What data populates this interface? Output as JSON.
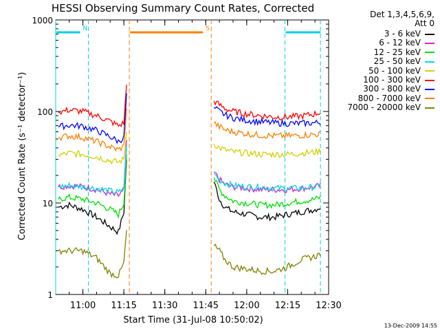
{
  "chart_data": {
    "type": "line",
    "title": "HESSI Observing Summary Count Rates, Corrected",
    "xlabel": "Start Time (31-Jul-08 10:50:02)",
    "ylabel": "Corrected Count Rate (s⁻¹ detector⁻¹)",
    "yscale": "log",
    "ylim": [
      1,
      1000
    ],
    "xlim": [
      "10:50:02",
      "12:30:00"
    ],
    "x_ticks": [
      "11:00",
      "11:15",
      "11:30",
      "11:45",
      "12:00",
      "12:15",
      "12:30"
    ],
    "y_ticks": [
      "1",
      "10",
      "100",
      "1000"
    ],
    "grid": false,
    "legend_position": "right",
    "legend_header": [
      "Det 1,3,4,5,6,9,",
      "Att 0"
    ],
    "footer_date": "13-Dec-2009 14:55",
    "flags": [
      {
        "label": "N",
        "color": "#00d0e0",
        "start": "10:50:02",
        "end": "11:02:00",
        "linestyle": "dashed"
      },
      {
        "label": "S",
        "color": "#ff7f00",
        "start": "11:17:00",
        "end": "11:47:00",
        "linestyle": "dashed"
      },
      {
        "label": "",
        "color": "#00d0e0",
        "start": "12:14:00",
        "end": "12:27:00",
        "linestyle": "dashed"
      }
    ],
    "data_gaps": [
      [
        "11:17:00",
        "11:48:00"
      ]
    ],
    "series": [
      {
        "name": "3 - 6 keV",
        "color": "#000000",
        "x": [
          "10:51",
          "10:55",
          "11:00",
          "11:05",
          "11:10",
          "11:13",
          "11:15",
          "11:16",
          "11:48",
          "11:50",
          "11:52",
          "11:55",
          "12:00",
          "12:05",
          "12:10",
          "12:15",
          "12:20",
          "12:25",
          "12:27"
        ],
        "values": [
          9,
          9.5,
          8.5,
          7,
          5.5,
          4.8,
          8,
          30,
          17,
          11,
          9,
          8,
          7.5,
          7,
          7,
          7.5,
          8,
          8.5,
          9
        ]
      },
      {
        "name": "6 - 12 keV",
        "color": "#d020d0",
        "x": [
          "10:51",
          "10:55",
          "11:00",
          "11:05",
          "11:10",
          "11:13",
          "11:15",
          "11:16",
          "11:48",
          "11:50",
          "11:52",
          "11:55",
          "12:00",
          "12:05",
          "12:10",
          "12:15",
          "12:20",
          "12:25",
          "12:27"
        ],
        "values": [
          15,
          15.5,
          15,
          14,
          12.5,
          12,
          14,
          45,
          22,
          18,
          16,
          15,
          14.5,
          14,
          14,
          14,
          14.5,
          15,
          15.5
        ]
      },
      {
        "name": "12 - 25 keV",
        "color": "#00e000",
        "x": [
          "10:51",
          "10:55",
          "11:00",
          "11:05",
          "11:10",
          "11:13",
          "11:15",
          "11:16",
          "11:48",
          "11:50",
          "11:52",
          "11:55",
          "12:00",
          "12:05",
          "12:10",
          "12:15",
          "12:20",
          "12:25",
          "12:27"
        ],
        "values": [
          11,
          11.5,
          11,
          10,
          8.5,
          7.5,
          10,
          35,
          19,
          14,
          12,
          10.5,
          10,
          9.5,
          9.5,
          10,
          10.5,
          11,
          11.5
        ]
      },
      {
        "name": "25 - 50 keV",
        "color": "#00d8e8",
        "x": [
          "10:51",
          "10:55",
          "11:00",
          "11:05",
          "11:10",
          "11:13",
          "11:15",
          "11:16",
          "11:48",
          "11:50",
          "11:52",
          "11:55",
          "12:00",
          "12:05",
          "12:10",
          "12:15",
          "12:20",
          "12:25",
          "12:27"
        ],
        "values": [
          15,
          15.5,
          15,
          14.5,
          13.5,
          13,
          14,
          40,
          21,
          18,
          16.5,
          15.5,
          15,
          15,
          14.5,
          14.5,
          14.5,
          15,
          15
        ]
      },
      {
        "name": "50 - 100 keV",
        "color": "#d0d000",
        "x": [
          "10:51",
          "10:55",
          "11:00",
          "11:05",
          "11:10",
          "11:13",
          "11:15",
          "11:16",
          "11:48",
          "11:50",
          "11:52",
          "11:55",
          "12:00",
          "12:05",
          "12:10",
          "12:15",
          "12:20",
          "12:25",
          "12:27"
        ],
        "values": [
          33,
          35,
          34,
          32,
          29,
          28,
          30,
          60,
          44,
          40,
          38,
          36,
          35,
          34,
          34,
          34,
          35,
          36,
          37
        ]
      },
      {
        "name": "100 - 300 keV",
        "color": "#ff0000",
        "x": [
          "10:51",
          "10:55",
          "11:00",
          "11:05",
          "11:10",
          "11:13",
          "11:15",
          "11:16",
          "11:48",
          "11:50",
          "11:52",
          "11:55",
          "12:00",
          "12:05",
          "12:10",
          "12:15",
          "12:20",
          "12:25",
          "12:27"
        ],
        "values": [
          98,
          104,
          100,
          90,
          78,
          70,
          75,
          195,
          130,
          118,
          108,
          100,
          94,
          90,
          87,
          87,
          89,
          94,
          98
        ]
      },
      {
        "name": "300 - 800 keV",
        "color": "#0000ff",
        "x": [
          "10:51",
          "10:55",
          "11:00",
          "11:05",
          "11:10",
          "11:13",
          "11:15",
          "11:16",
          "11:48",
          "11:50",
          "11:52",
          "11:55",
          "12:00",
          "12:05",
          "12:10",
          "12:15",
          "12:20",
          "12:25",
          "12:27"
        ],
        "values": [
          68,
          71,
          69,
          62,
          53,
          47,
          52,
          150,
          110,
          100,
          92,
          85,
          80,
          77,
          75,
          74,
          74,
          75,
          76
        ]
      },
      {
        "name": "800 - 7000 keV",
        "color": "#ff7f00",
        "x": [
          "10:51",
          "10:55",
          "11:00",
          "11:05",
          "11:10",
          "11:13",
          "11:15",
          "11:16",
          "11:48",
          "11:50",
          "11:52",
          "11:55",
          "12:00",
          "12:05",
          "12:10",
          "12:15",
          "12:20",
          "12:25",
          "12:27"
        ],
        "values": [
          52,
          54,
          52,
          47,
          41,
          38,
          42,
          110,
          75,
          68,
          63,
          60,
          57,
          55,
          54,
          54,
          55,
          56,
          57
        ]
      },
      {
        "name": "7000 - 20000 keV",
        "color": "#808000",
        "x": [
          "10:51",
          "10:55",
          "11:00",
          "11:05",
          "11:10",
          "11:13",
          "11:15",
          "11:16",
          "11:48",
          "11:50",
          "11:52",
          "11:55",
          "12:00",
          "12:05",
          "12:10",
          "12:15",
          "12:20",
          "12:25",
          "12:27"
        ],
        "values": [
          3,
          3,
          3,
          2.5,
          1.7,
          1.6,
          2.2,
          5,
          3.4,
          3,
          2.4,
          2,
          1.9,
          1.8,
          1.8,
          2,
          2.4,
          2.6,
          2.8
        ]
      }
    ]
  }
}
